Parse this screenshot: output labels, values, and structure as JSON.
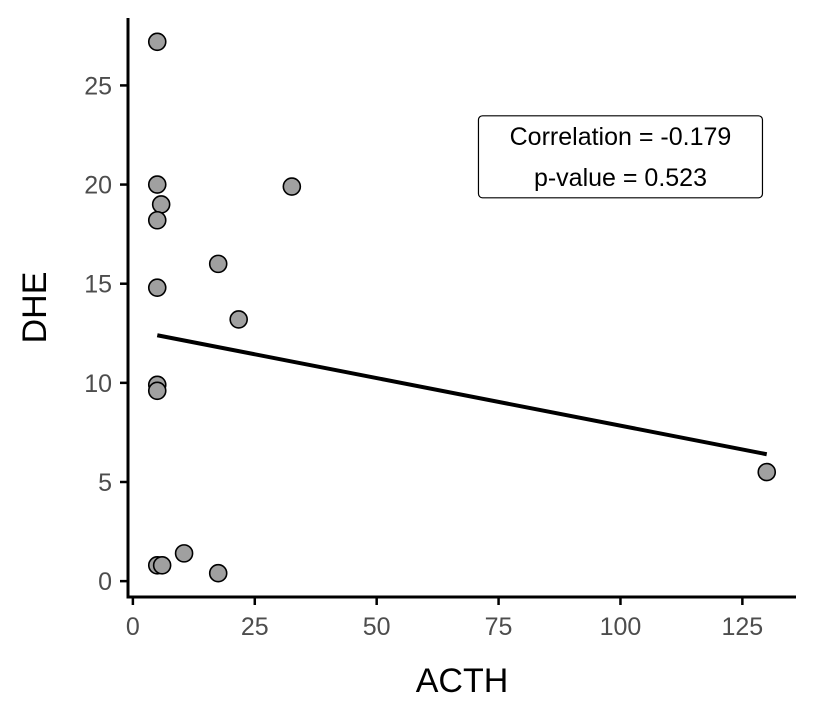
{
  "chart_data": {
    "type": "scatter",
    "xlabel": "ACTH",
    "ylabel": "DHE",
    "xlim": [
      -1,
      136
    ],
    "ylim": [
      -0.8,
      28.4
    ],
    "x_ticks": [
      0,
      25,
      50,
      75,
      100,
      125
    ],
    "y_ticks": [
      0,
      5,
      10,
      15,
      20,
      25
    ],
    "grid": false,
    "points": [
      {
        "x": 5.0,
        "y": 27.2
      },
      {
        "x": 5.0,
        "y": 20.0
      },
      {
        "x": 5.8,
        "y": 19.0
      },
      {
        "x": 5.0,
        "y": 18.2
      },
      {
        "x": 5.0,
        "y": 14.8
      },
      {
        "x": 5.0,
        "y": 9.9
      },
      {
        "x": 5.0,
        "y": 9.6
      },
      {
        "x": 5.0,
        "y": 0.8
      },
      {
        "x": 6.0,
        "y": 0.8
      },
      {
        "x": 10.5,
        "y": 1.4
      },
      {
        "x": 17.5,
        "y": 0.4
      },
      {
        "x": 17.5,
        "y": 16.0
      },
      {
        "x": 21.7,
        "y": 13.2
      },
      {
        "x": 32.6,
        "y": 19.9
      },
      {
        "x": 130.0,
        "y": 5.5
      }
    ],
    "fit_line": {
      "x": [
        5.0,
        130.0
      ],
      "y": [
        12.4,
        6.4
      ]
    },
    "annotation": {
      "line1": "Correlation = -0.179",
      "line2": "p-value = 0.523",
      "anchor_x": 100.0,
      "anchor_y": 21.4
    },
    "colors": {
      "point_fill": "#a0a0a0",
      "point_stroke": "#000000",
      "line": "#000000",
      "axis": "#000000",
      "tick_text": "#4d4d4d"
    }
  }
}
